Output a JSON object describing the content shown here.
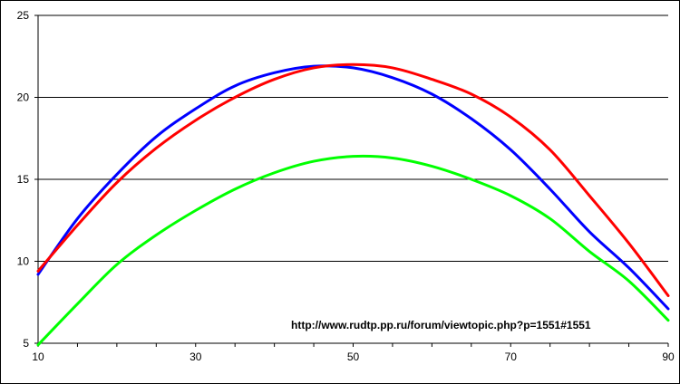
{
  "chart_data": {
    "type": "line",
    "title": "",
    "xlabel": "",
    "ylabel": "",
    "xlim": [
      10,
      90
    ],
    "ylim": [
      5,
      25
    ],
    "x_ticks": [
      10,
      30,
      50,
      70,
      90
    ],
    "y_ticks": [
      5,
      10,
      15,
      20,
      25
    ],
    "grid": "horizontal",
    "legend": "none",
    "annotation": "http://www.rudtp.pp.ru/forum/viewtopic.php?p=1551#1551",
    "x": [
      10,
      15,
      20,
      25,
      30,
      35,
      40,
      45,
      50,
      55,
      60,
      65,
      70,
      75,
      80,
      85,
      90
    ],
    "series": [
      {
        "color": "#0000ff",
        "values": [
          9.2,
          12.6,
          15.3,
          17.6,
          19.3,
          20.7,
          21.5,
          21.9,
          21.8,
          21.2,
          20.2,
          18.7,
          16.8,
          14.4,
          11.8,
          9.6,
          7.1
        ]
      },
      {
        "color": "#ff0000",
        "values": [
          9.4,
          12.2,
          14.8,
          16.9,
          18.6,
          20.0,
          21.1,
          21.8,
          22.0,
          21.8,
          21.1,
          20.2,
          18.8,
          16.8,
          14.0,
          11.1,
          7.9
        ]
      },
      {
        "color": "#00ff00",
        "values": [
          4.9,
          7.4,
          9.8,
          11.6,
          13.1,
          14.4,
          15.4,
          16.1,
          16.4,
          16.3,
          15.8,
          15.0,
          14.0,
          12.6,
          10.6,
          8.8,
          6.4
        ]
      }
    ]
  }
}
